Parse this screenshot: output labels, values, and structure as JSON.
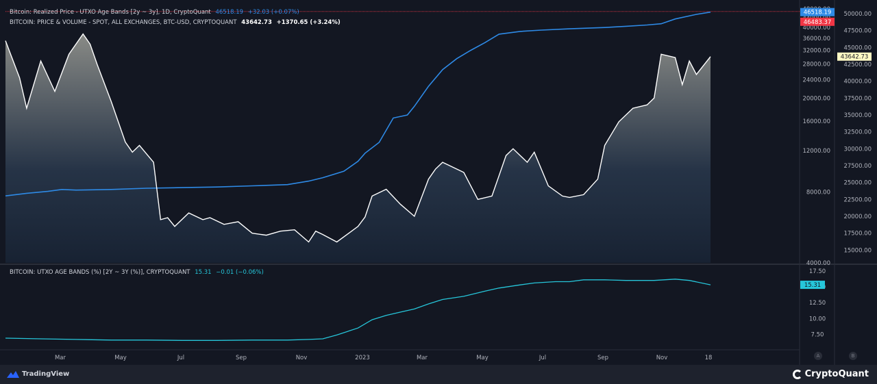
{
  "legend": {
    "main_title": "Bitcoin: Realized Price - UTXO Age Bands [2y ~ 3y], 1D, CryptoQuant",
    "main_value": "46518.19",
    "main_change": "+32.03 (+0.07%)",
    "price_title": "BITCOIN: PRICE & VOLUME - SPOT, ALL EXCHANGES, BTC-USD, CRYPTOQUANT",
    "price_value": "43642.73",
    "price_change": "+1370.65 (+3.24%)",
    "sub_title": "BITCOIN: UTXO AGE BANDS (%) [2Y ~ 3Y (%)], CRYPTOQUANT",
    "sub_value": "15.31",
    "sub_change": "−0.01 (−0.06%)"
  },
  "footer": {
    "tradingview": "TradingView",
    "cryptoquant": "CryptoQuant",
    "btn_a": "A",
    "btn_b": "B"
  },
  "colors": {
    "background": "#131722",
    "realized_price": "#2e8ae6",
    "price": "#ffffff",
    "utxo_pct": "#26c6da",
    "marker_red": "#f23645",
    "badge_price": "#fff9c4"
  },
  "chart_data": [
    {
      "type": "line",
      "x_ticks": [
        "Mar",
        "May",
        "Jul",
        "Sep",
        "Nov",
        "2023",
        "Mar",
        "May",
        "Jul",
        "Sep",
        "Nov",
        "18"
      ],
      "left_axis": {
        "scale": "log",
        "ticks": [
          4000,
          8000,
          12000,
          16000,
          20000,
          24000,
          28000,
          32000,
          36000,
          40000,
          44000,
          48000
        ],
        "tick_labels": [
          "4000.00",
          "8000.00",
          "12000.00",
          "16000.00",
          "20000.00",
          "24000.00",
          "28000.00",
          "32000.00",
          "36000.00",
          "40000.00",
          "44000.00",
          "48000.00"
        ]
      },
      "right_axis": {
        "scale": "linear",
        "ticks": [
          15000,
          17500,
          20000,
          22500,
          25000,
          27500,
          30000,
          32500,
          35000,
          37500,
          40000,
          42500,
          45000,
          47500,
          50000
        ],
        "tick_labels": [
          "15000.00",
          "17500.00",
          "20000.00",
          "22500.00",
          "25000.00",
          "27500.00",
          "30000.00",
          "32500.00",
          "35000.00",
          "37500.00",
          "40000.00",
          "42500.00",
          "45000.00",
          "47500.00",
          "50000.00"
        ]
      },
      "badges": [
        {
          "label": "46518.19",
          "value": 46518.19,
          "color": "#2e8ae6"
        },
        {
          "label": "46483.37",
          "value": 46483.37,
          "color": "#f23645"
        },
        {
          "label": "43642.73",
          "value": 43642.73,
          "color": "#fff9c4"
        }
      ],
      "series": [
        {
          "axis": "left",
          "color": "#2e8ae6",
          "x": [
            0,
            0.03,
            0.06,
            0.08,
            0.1,
            0.15,
            0.2,
            0.25,
            0.3,
            0.35,
            0.4,
            0.43,
            0.45,
            0.48,
            0.5,
            0.51,
            0.53,
            0.55,
            0.57,
            0.58,
            0.6,
            0.62,
            0.64,
            0.66,
            0.68,
            0.7,
            0.73,
            0.76,
            0.8,
            0.85,
            0.88,
            0.91,
            0.93,
            0.95,
            0.98,
            1
          ],
          "values": [
            7700,
            7900,
            8050,
            8200,
            8150,
            8200,
            8300,
            8350,
            8400,
            8500,
            8600,
            8900,
            9200,
            9800,
            10800,
            11700,
            13000,
            16500,
            17000,
            18500,
            22500,
            26500,
            29500,
            32000,
            34500,
            37500,
            38500,
            39000,
            39500,
            40000,
            40500,
            41000,
            41500,
            43500,
            45500,
            46518
          ]
        },
        {
          "axis": "right",
          "color": "#ffffff",
          "x": [
            0,
            0.02,
            0.03,
            0.05,
            0.07,
            0.09,
            0.11,
            0.12,
            0.13,
            0.15,
            0.17,
            0.18,
            0.19,
            0.21,
            0.22,
            0.23,
            0.24,
            0.26,
            0.28,
            0.29,
            0.31,
            0.33,
            0.35,
            0.37,
            0.39,
            0.41,
            0.43,
            0.44,
            0.45,
            0.47,
            0.5,
            0.51,
            0.52,
            0.54,
            0.56,
            0.58,
            0.6,
            0.61,
            0.62,
            0.65,
            0.67,
            0.69,
            0.71,
            0.72,
            0.74,
            0.75,
            0.77,
            0.79,
            0.8,
            0.82,
            0.84,
            0.85,
            0.87,
            0.89,
            0.91,
            0.92,
            0.93,
            0.95,
            0.96,
            0.97,
            0.98,
            1
          ],
          "values": [
            46000,
            40500,
            36000,
            43000,
            38500,
            44000,
            47000,
            45500,
            42500,
            37000,
            31000,
            29500,
            30500,
            28000,
            19500,
            19800,
            18500,
            20500,
            19500,
            19800,
            18800,
            19200,
            17500,
            17200,
            17800,
            18000,
            16200,
            17800,
            17300,
            16200,
            18500,
            19900,
            23000,
            24000,
            21800,
            20000,
            25500,
            27000,
            28000,
            26500,
            22500,
            23000,
            29000,
            30000,
            28000,
            29500,
            24500,
            23000,
            22800,
            23200,
            25500,
            30500,
            34000,
            36000,
            36500,
            37500,
            44000,
            43500,
            39500,
            43000,
            41000,
            43642
          ]
        }
      ]
    },
    {
      "type": "line",
      "right_axis": {
        "scale": "linear",
        "ticks": [
          7.5,
          10,
          12.5,
          15,
          17.5
        ],
        "tick_labels": [
          "7.50",
          "10.00",
          "12.50",
          "15.00",
          "17.50"
        ]
      },
      "badges": [
        {
          "label": "15.31",
          "value": 15.31,
          "color": "#26c6da"
        }
      ],
      "series": [
        {
          "axis": "right",
          "color": "#26c6da",
          "x": [
            0,
            0.05,
            0.1,
            0.15,
            0.2,
            0.25,
            0.3,
            0.35,
            0.4,
            0.43,
            0.45,
            0.47,
            0.5,
            0.52,
            0.54,
            0.56,
            0.58,
            0.6,
            0.62,
            0.65,
            0.68,
            0.7,
            0.73,
            0.75,
            0.78,
            0.8,
            0.82,
            0.85,
            0.88,
            0.9,
            0.92,
            0.95,
            0.97,
            1
          ],
          "values": [
            6.9,
            6.8,
            6.7,
            6.6,
            6.6,
            6.55,
            6.55,
            6.6,
            6.6,
            6.7,
            6.8,
            7.4,
            8.5,
            9.8,
            10.5,
            11.0,
            11.5,
            12.3,
            13.0,
            13.5,
            14.3,
            14.8,
            15.3,
            15.6,
            15.8,
            15.8,
            16.1,
            16.1,
            16.0,
            16.0,
            16.0,
            16.2,
            16.0,
            15.31
          ]
        }
      ]
    }
  ]
}
